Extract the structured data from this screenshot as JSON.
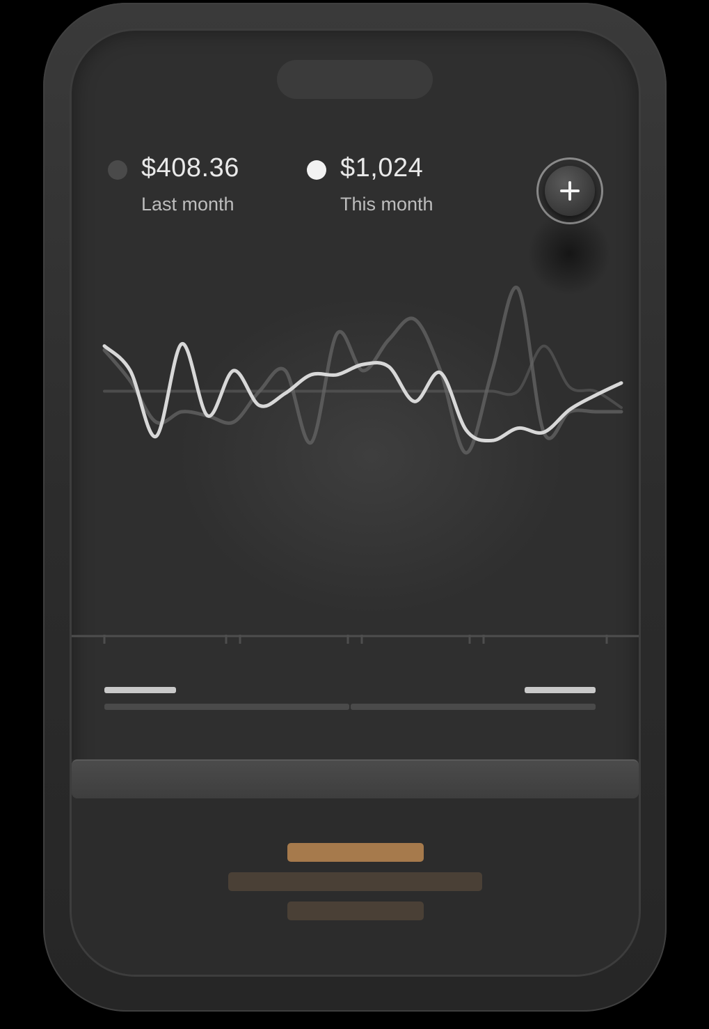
{
  "stats": {
    "last_month": {
      "amount": "$408.36",
      "label": "Last month",
      "dot_color": "#4a4a4a"
    },
    "this_month": {
      "amount": "$1,024",
      "label": "This month",
      "dot_color": "#f2f2f2"
    }
  },
  "add_button": {
    "icon": "plus-icon"
  },
  "colors": {
    "background": "#2f2f2f",
    "accent": "#a67a4c",
    "line_primary": "#d8d8d8",
    "line_secondary": "#585858"
  },
  "chart_data": {
    "type": "line",
    "x": [
      0,
      1,
      2,
      3,
      4,
      5,
      6,
      7,
      8,
      9,
      10,
      11,
      12,
      13,
      14,
      15,
      16,
      17,
      18,
      19,
      20
    ],
    "series": [
      {
        "values": [
          72,
          60,
          28,
          73,
          38,
          60,
          43,
          49,
          58,
          58,
          63,
          62,
          45,
          59,
          31,
          26,
          32,
          30,
          41,
          48,
          54
        ]
      },
      {
        "values": [
          70,
          55,
          35,
          40,
          38,
          35,
          50,
          60,
          25,
          78,
          60,
          75,
          85,
          60,
          20,
          60,
          100,
          30,
          40,
          40,
          40
        ]
      },
      {
        "values": [
          50,
          50,
          50,
          50,
          50,
          50,
          50,
          50,
          50,
          50,
          50,
          50,
          50,
          50,
          50,
          50,
          50,
          72,
          52,
          50,
          42
        ]
      }
    ],
    "ticks": 9,
    "grid": false,
    "xlabel": "",
    "ylabel": ""
  }
}
